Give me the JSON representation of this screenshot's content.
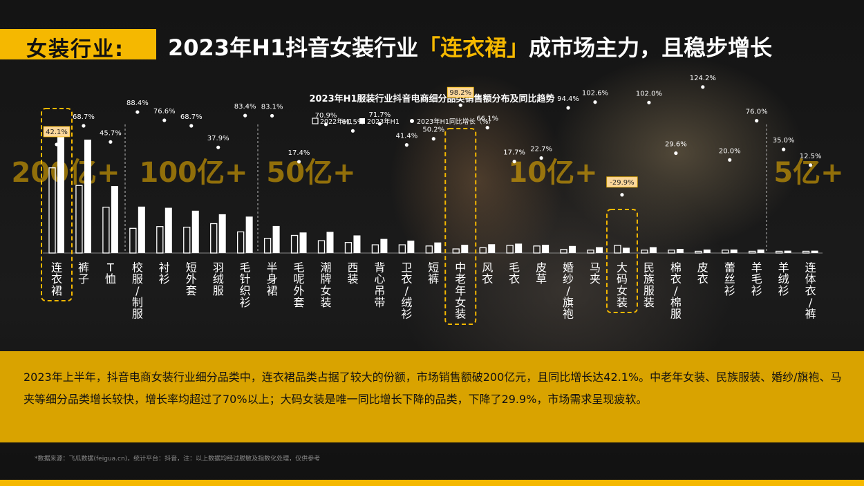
{
  "header": {
    "tag": "女装行业:",
    "title_pre": "2023年H1抖音女装行业",
    "title_hl": "「连衣裙」",
    "title_post": "成市场主力，且稳步增长"
  },
  "colors": {
    "accent": "#f5b800",
    "bar_2022": "#ffffff",
    "bar_2023": "#ffffff",
    "highlight_box": "#f5b800"
  },
  "chart_data": {
    "type": "bar",
    "title": "2023年H1服装行业抖音电商细分品类销售额分布及同比趋势",
    "legend": [
      "2022年H1",
      "2023年H1",
      "2023年H1同比增长（%）"
    ],
    "legend_position": "top-center",
    "tiers": [
      "200亿+",
      "100亿+",
      "50亿+",
      "10亿+",
      "5亿+"
    ],
    "categories": [
      "连衣裙",
      "裤子",
      "T恤",
      "校服/制服",
      "衬衫",
      "短外套",
      "羽绒服",
      "毛针织衫",
      "半身裙",
      "毛呢外套",
      "潮牌女装",
      "西装",
      "背心吊带",
      "卫衣/绒衫",
      "短裤",
      "中老年女装",
      "风衣",
      "毛衣",
      "皮草",
      "婚纱/旗袍",
      "马夹",
      "大码女装",
      "民族服装",
      "棉衣/棉服",
      "皮衣",
      "蕾丝衫",
      "羊毛衫",
      "羊绒衫",
      "连体衣/裤"
    ],
    "series": [
      {
        "name": "2022年H1",
        "values": [
          145,
          115,
          78,
          42,
          45,
          44,
          50,
          36,
          25,
          30,
          21,
          18,
          14,
          14,
          12,
          7,
          9,
          13,
          12,
          6,
          5,
          13,
          5,
          5,
          3,
          5,
          3,
          3,
          3
        ]
      },
      {
        "name": "2023年H1",
        "values": [
          206,
          193,
          114,
          79,
          77,
          72,
          66,
          62,
          46,
          35,
          36,
          30,
          24,
          21,
          18,
          14,
          15,
          16,
          14,
          12,
          10,
          9,
          10,
          7,
          6,
          6,
          6,
          4,
          4
        ]
      },
      {
        "name": "2023年H1同比增长（%）",
        "values": [
          42.1,
          68.7,
          45.7,
          88.4,
          76.6,
          68.7,
          37.9,
          83.4,
          83.1,
          17.4,
          70.9,
          61.5,
          71.7,
          41.4,
          50.2,
          98.2,
          66.1,
          17.7,
          22.7,
          94.4,
          102.6,
          -29.9,
          102.0,
          29.6,
          124.2,
          20.0,
          76.0,
          35.0,
          12.5
        ]
      }
    ],
    "growth_labels": [
      "42.1%",
      "68.7%",
      "45.7%",
      "88.4%",
      "76.6%",
      "68.7%",
      "37.9%",
      "83.4%",
      "83.1%",
      "17.4%",
      "70.9%",
      "61.5%",
      "71.7%",
      "41.4%",
      "50.2%",
      "98.2%",
      "66.1%",
      "17.7%",
      "22.7%",
      "94.4%",
      "102.6%",
      "-29.9%",
      "102.0%",
      "29.6%",
      "124.2%",
      "20.0%",
      "76.0%",
      "35.0%",
      "12.5%"
    ],
    "highlighted": [
      "连衣裙",
      "中老年女装",
      "大码女装"
    ]
  },
  "summary": "2023年上半年，抖音电商女装行业细分品类中，连衣裙品类占据了较大的份额，市场销售额破200亿元，且同比增长达42.1%。中老年女装、民族服装、婚纱/旗袍、马夹等细分品类增长较快，增长率均超过了70%以上；大码女装是唯一同比增长下降的品类，下降了29.9%，市场需求呈现疲软。",
  "source": "*数据来源：飞瓜数据(feigua.cn)，统计平台：抖音，注：以上数据均经过脱敏及指数化处理，仅供参考"
}
